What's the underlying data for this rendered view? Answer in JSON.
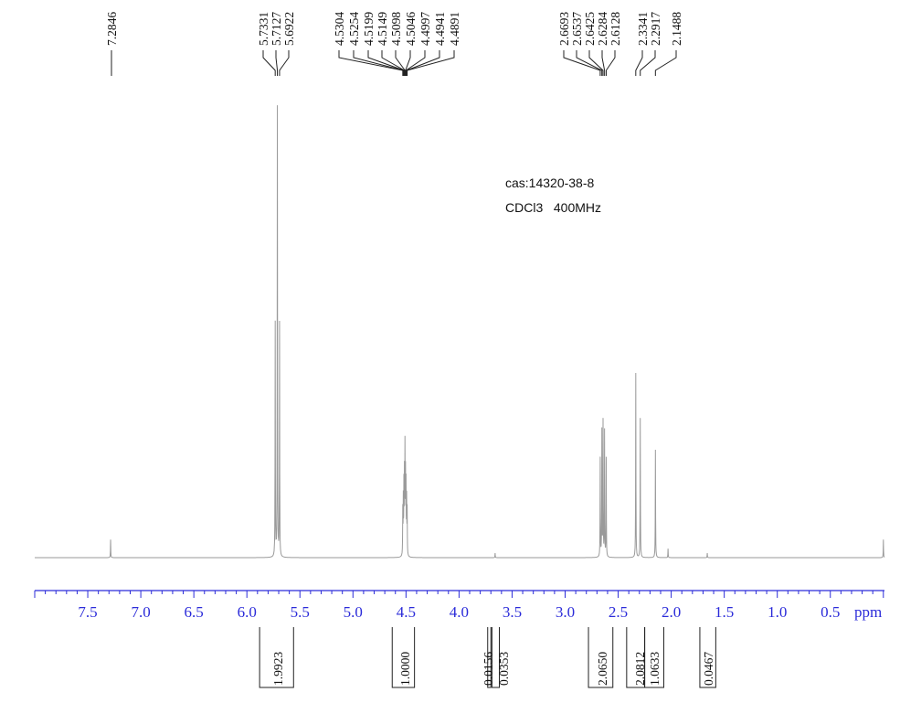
{
  "chart_data": {
    "type": "line",
    "title": "",
    "xlabel": "ppm",
    "ylabel": "",
    "x_reversed": true,
    "xlim": [
      8.0,
      0.0
    ],
    "x_ticks": [
      7.5,
      7.0,
      6.5,
      6.0,
      5.5,
      5.0,
      4.5,
      4.0,
      3.5,
      3.0,
      2.5,
      2.0,
      1.5,
      1.0,
      0.5
    ],
    "x_tick_labels": [
      "7.5",
      "7.0",
      "6.5",
      "6.0",
      "5.5",
      "5.0",
      "4.5",
      "4.0",
      "3.5",
      "3.0",
      "2.5",
      "2.0",
      "1.5",
      "1.0",
      "0.5"
    ],
    "x_unit_label": "ppm",
    "annotations": {
      "sample": "cas:14320-38-8",
      "solvent": "CDCl3   400MHz"
    },
    "peak_groups": [
      {
        "labels": [
          "7.2846"
        ],
        "values": [
          7.2846
        ]
      },
      {
        "labels": [
          "5.7331",
          "5.7127",
          "5.6922"
        ],
        "values": [
          5.7331,
          5.7127,
          5.6922
        ]
      },
      {
        "labels": [
          "4.5304",
          "4.5254",
          "4.5199",
          "4.5149",
          "4.5098",
          "4.5046",
          "4.4997",
          "4.4941",
          "4.4891"
        ],
        "values": [
          4.5304,
          4.5254,
          4.5199,
          4.5149,
          4.5098,
          4.5046,
          4.4997,
          4.4941,
          4.4891
        ]
      },
      {
        "labels": [
          "2.6693",
          "2.6537",
          "2.6425",
          "2.6284",
          "2.6128",
          "2.3341",
          "2.2917",
          "2.1488"
        ],
        "values": [
          2.6693,
          2.6537,
          2.6425,
          2.6284,
          2.6128,
          2.3341,
          2.2917,
          2.1488
        ]
      }
    ],
    "integrals": [
      {
        "label": "1.9923",
        "value": 1.9923,
        "from": 5.88,
        "to": 5.56
      },
      {
        "label": "1.0000",
        "value": 1.0,
        "from": 4.63,
        "to": 4.42
      },
      {
        "label": "0.0156",
        "value": 0.0156,
        "from": 3.73,
        "to": 3.7
      },
      {
        "label": "0.0353",
        "value": 0.0353,
        "from": 3.69,
        "to": 3.62
      },
      {
        "label": "2.0650",
        "value": 2.065,
        "from": 2.78,
        "to": 2.55
      },
      {
        "label": "2.0812",
        "value": 2.0812,
        "from": 2.42,
        "to": 2.25
      },
      {
        "label": "1.0633",
        "value": 1.0633,
        "from": 2.25,
        "to": 2.07
      },
      {
        "label": "0.0467",
        "value": 0.0467,
        "from": 1.73,
        "to": 1.58
      }
    ],
    "series": [
      {
        "peaks": [
          {
            "x": 7.2846,
            "h": 0.04
          },
          {
            "x": 5.7331,
            "h": 0.52
          },
          {
            "x": 5.7127,
            "h": 1.0
          },
          {
            "x": 5.6922,
            "h": 0.52
          },
          {
            "x": 4.5304,
            "h": 0.1
          },
          {
            "x": 4.5254,
            "h": 0.12
          },
          {
            "x": 4.5199,
            "h": 0.15
          },
          {
            "x": 4.5149,
            "h": 0.17
          },
          {
            "x": 4.5098,
            "h": 0.23
          },
          {
            "x": 4.5046,
            "h": 0.17
          },
          {
            "x": 4.4997,
            "h": 0.15
          },
          {
            "x": 4.4941,
            "h": 0.12
          },
          {
            "x": 4.4891,
            "h": 0.1
          },
          {
            "x": 3.66,
            "h": 0.01
          },
          {
            "x": 2.6693,
            "h": 0.22
          },
          {
            "x": 2.6537,
            "h": 0.28
          },
          {
            "x": 2.6425,
            "h": 0.3
          },
          {
            "x": 2.6284,
            "h": 0.28
          },
          {
            "x": 2.6128,
            "h": 0.22
          },
          {
            "x": 2.3341,
            "h": 0.41
          },
          {
            "x": 2.2917,
            "h": 0.31
          },
          {
            "x": 2.1488,
            "h": 0.24
          },
          {
            "x": 2.03,
            "h": 0.02
          },
          {
            "x": 1.66,
            "h": 0.01
          },
          {
            "x": 0.0,
            "h": 0.04
          }
        ]
      }
    ]
  }
}
